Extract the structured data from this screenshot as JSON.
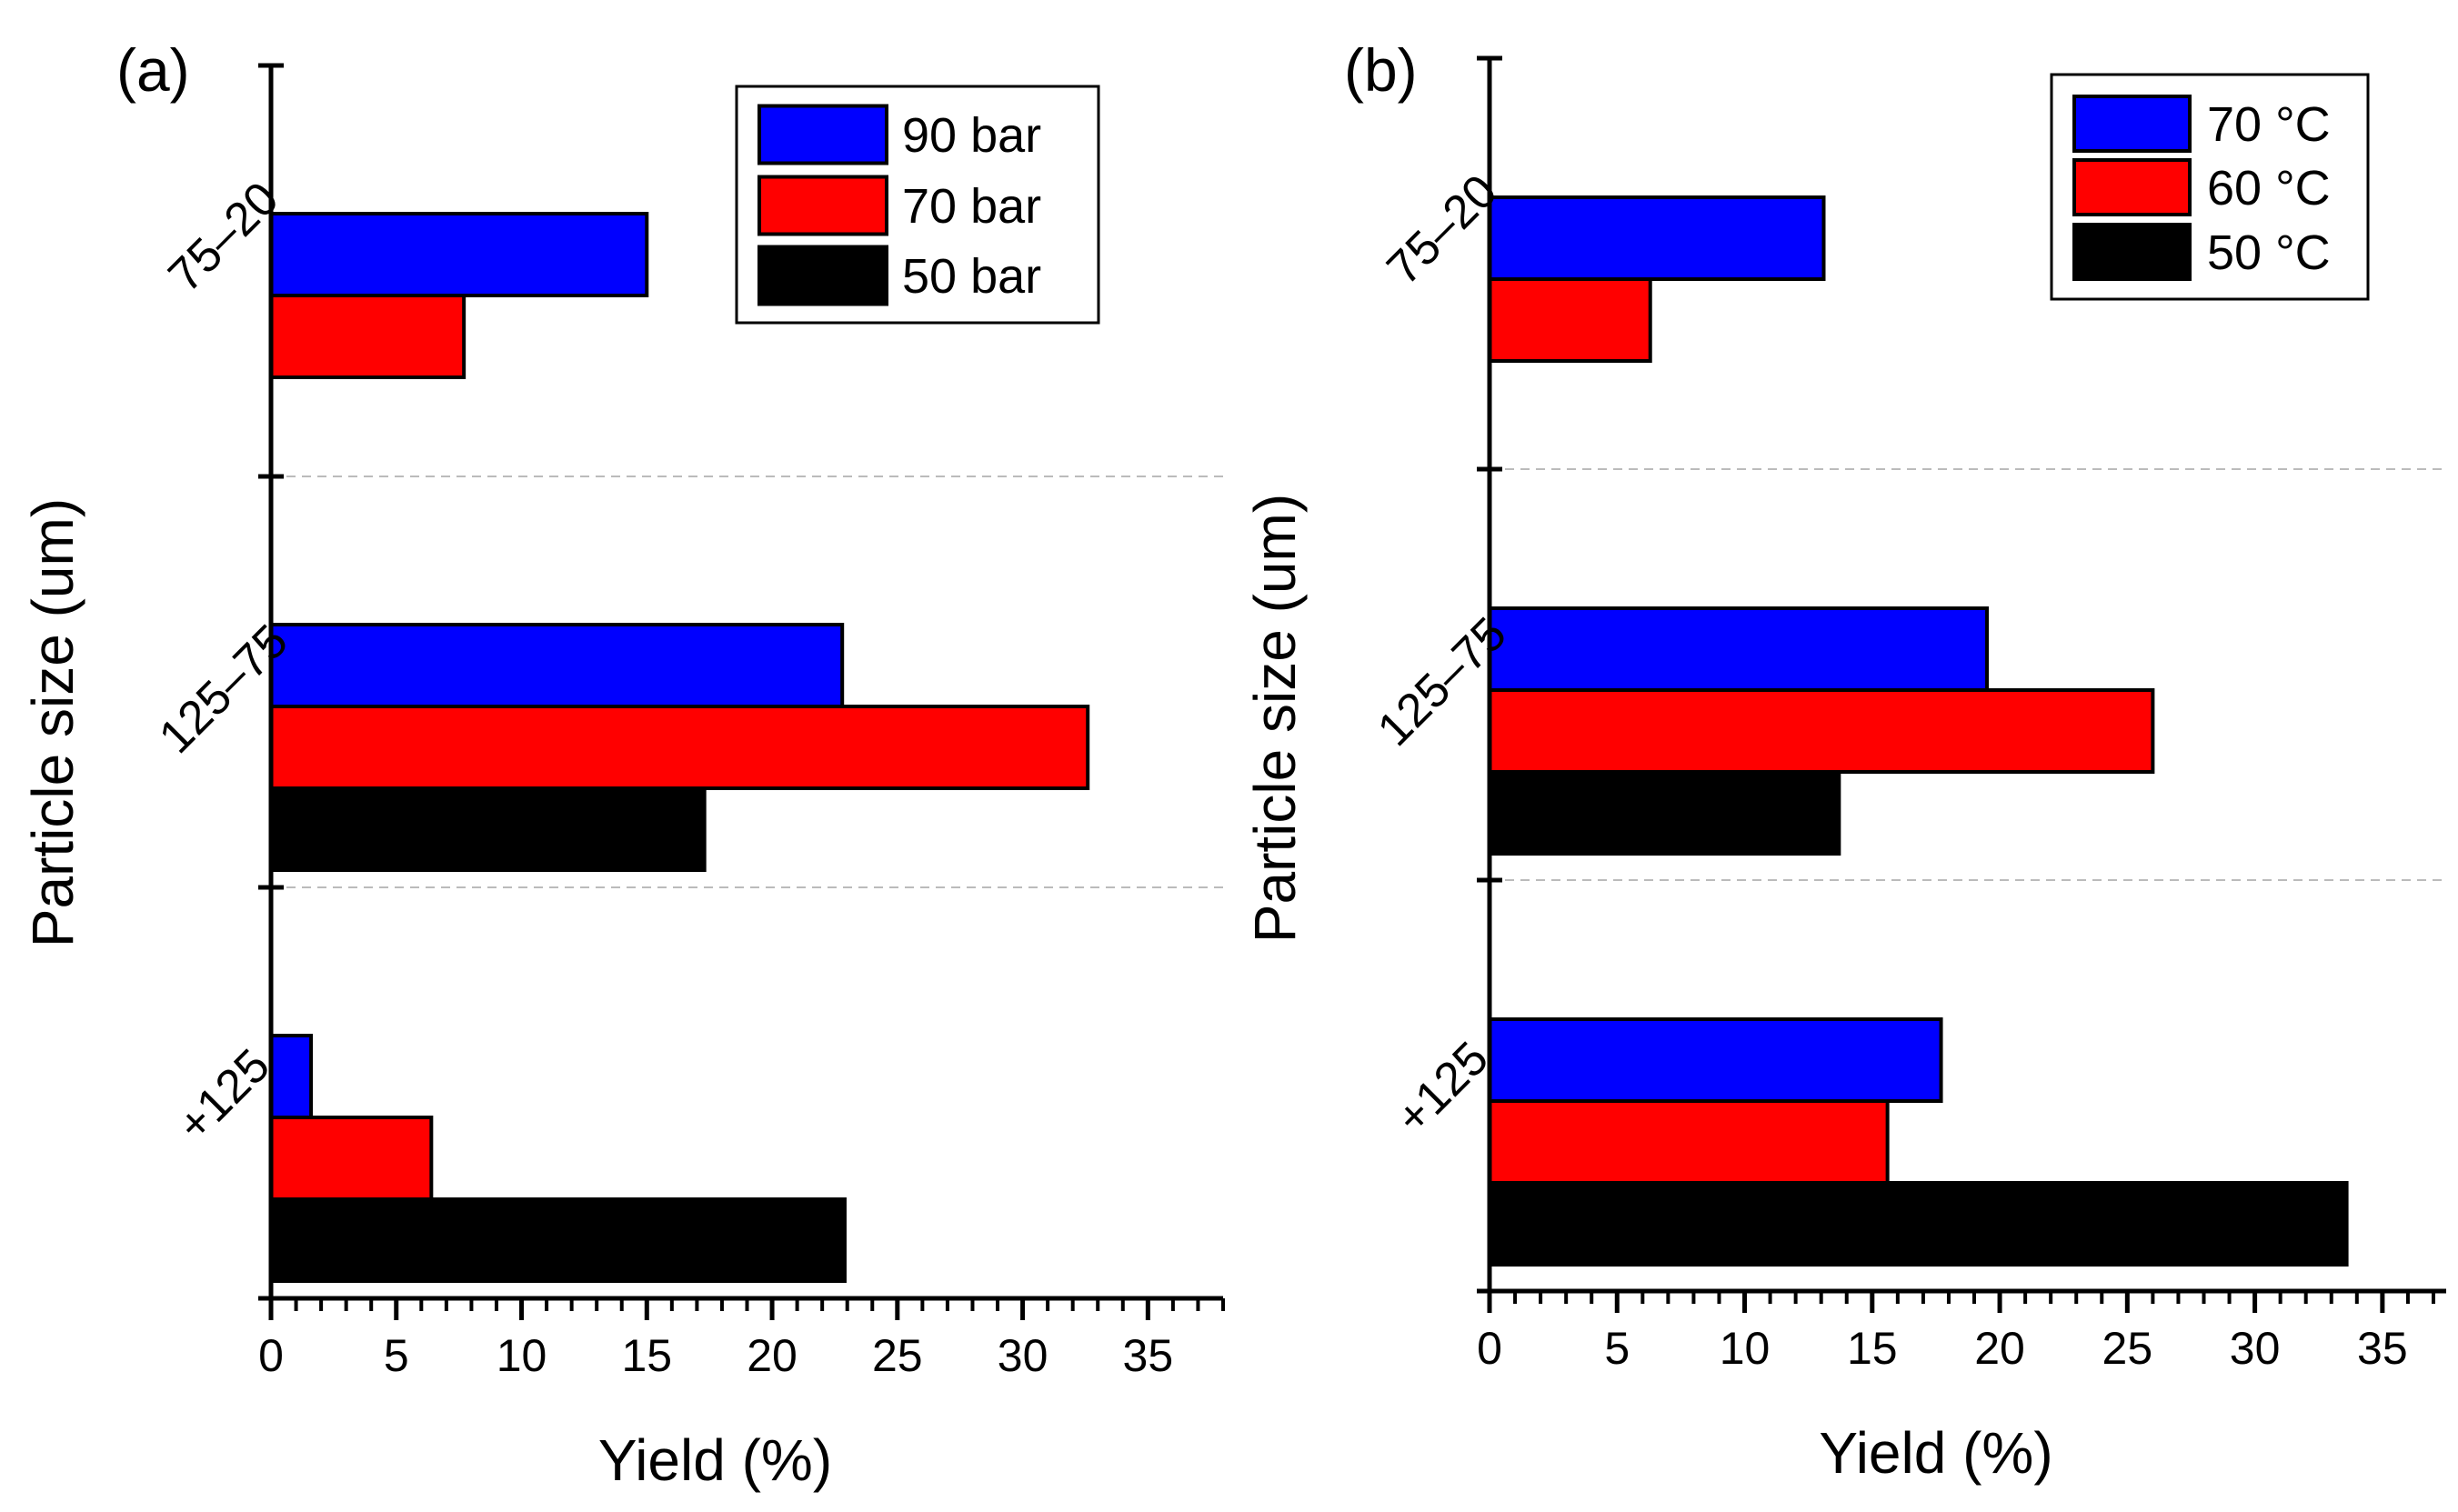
{
  "colors": {
    "blue": "#0000ff",
    "red": "#ff0000",
    "black": "#000000"
  },
  "chart_data": [
    {
      "type": "bar",
      "orientation": "horizontal",
      "panel_label": "(a)",
      "title": "",
      "xlabel": "Yield (%)",
      "ylabel": "Particle size (um)",
      "xlim": [
        0,
        38
      ],
      "xticks": [
        "0",
        "5",
        "10",
        "15",
        "20",
        "25",
        "30",
        "35"
      ],
      "categories": [
        "75–20",
        "125–75",
        "+125"
      ],
      "series": [
        {
          "name": "90 bar",
          "color": "#0000ff",
          "values": [
            15.0,
            22.8,
            1.6
          ]
        },
        {
          "name": "70 bar",
          "color": "#ff0000",
          "values": [
            7.7,
            32.6,
            6.4
          ]
        },
        {
          "name": "50 bar",
          "color": "#000000",
          "values": [
            0,
            17.3,
            22.9
          ]
        }
      ],
      "legend": "top-right",
      "grid": false
    },
    {
      "type": "bar",
      "orientation": "horizontal",
      "panel_label": "(b)",
      "title": "",
      "xlabel": "Yield (%)",
      "ylabel": "Particle size (um)",
      "xlim": [
        0,
        37.5
      ],
      "xticks": [
        "0",
        "5",
        "10",
        "15",
        "20",
        "25",
        "30",
        "35"
      ],
      "categories": [
        "75–20",
        "125–75",
        "+125"
      ],
      "series": [
        {
          "name": "70 °C",
          "color": "#0000ff",
          "values": [
            13.1,
            19.5,
            17.7
          ]
        },
        {
          "name": "60 °C",
          "color": "#ff0000",
          "values": [
            6.3,
            26.0,
            15.6
          ]
        },
        {
          "name": "50 °C",
          "color": "#000000",
          "values": [
            0,
            13.7,
            33.6
          ]
        }
      ],
      "legend": "top-right",
      "grid": false
    }
  ]
}
